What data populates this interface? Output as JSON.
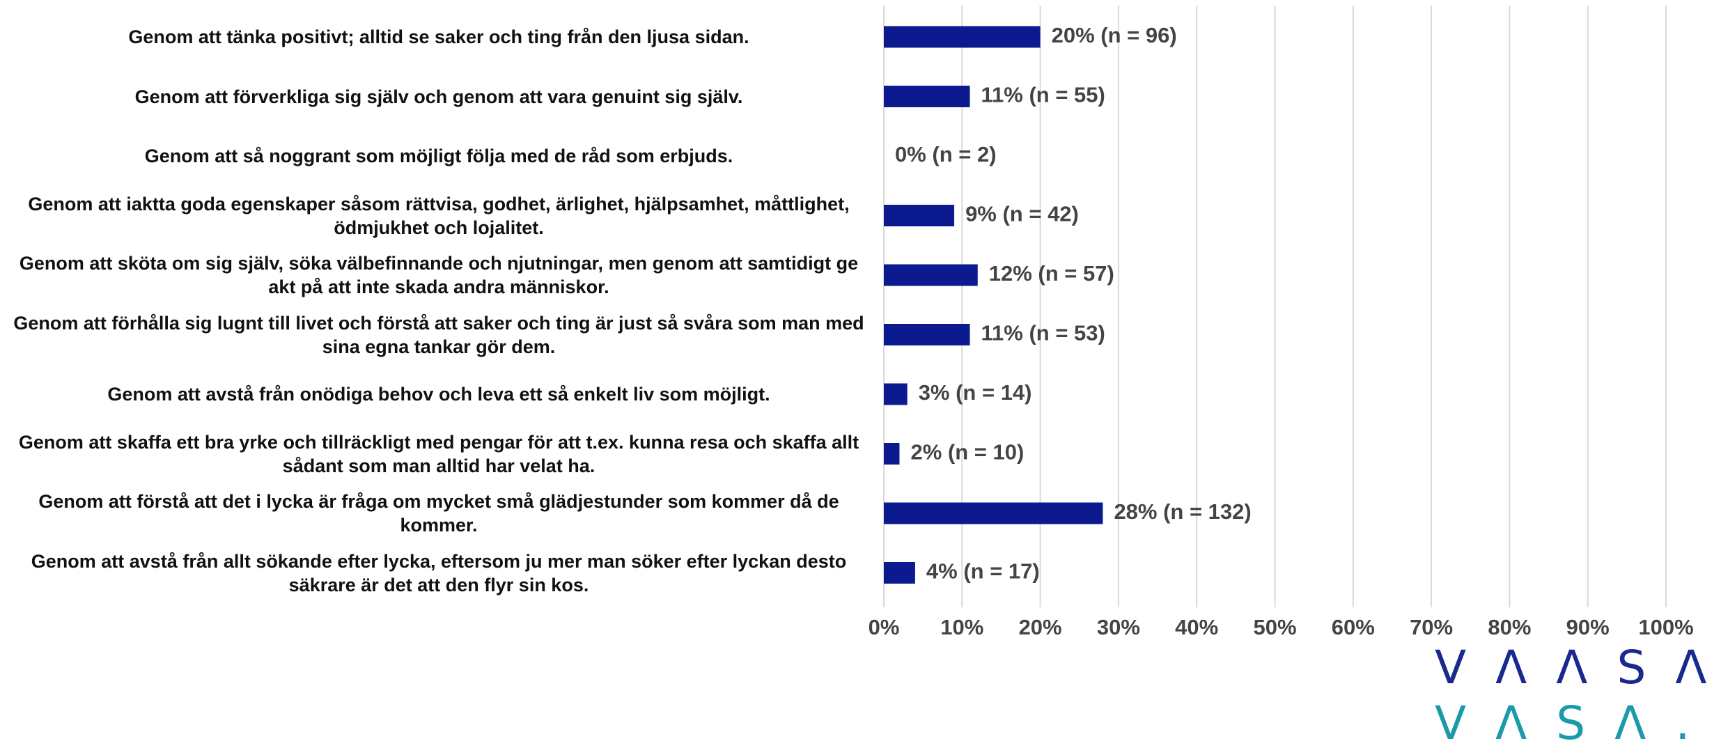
{
  "chart_data": {
    "type": "barh",
    "categories": [
      "Genom att tänka positivt; alltid se saker och ting från den ljusa sidan.",
      "Genom att förverkliga sig själv och genom att vara genuint sig själv.",
      "Genom att så noggrant som möjligt följa med de råd som erbjuds.",
      "Genom att iaktta goda egenskaper såsom rättvisa, godhet, ärlighet, hjälpsamhet, måttlighet, ödmjukhet och lojalitet.",
      "Genom att sköta om sig själv, söka välbefinnande och njutningar, men genom att samtidigt ge akt på att inte skada andra människor.",
      "Genom att förhålla sig lugnt till livet och förstå att saker och ting är just så svåra som man med sina egna tankar gör dem.",
      "Genom att avstå från onödiga behov och leva ett så enkelt liv som möjligt.",
      "Genom att skaffa ett bra yrke och tillräckligt med pengar för att t.ex.  kunna resa och skaffa allt sådant som man alltid har velat ha.",
      "Genom att förstå att det i lycka är fråga om mycket små glädjestunder som kommer då de kommer.",
      "Genom att avstå från allt sökande efter lycka, eftersom ju mer man söker efter lyckan desto säkrare är det att den flyr sin kos."
    ],
    "values": [
      20,
      11,
      0,
      9,
      12,
      11,
      3,
      2,
      28,
      4
    ],
    "value_labels": [
      "20% (n = 96)",
      "11% (n = 55)",
      "0% (n = 2)",
      "9% (n = 42)",
      "12% (n = 57)",
      "11% (n = 53)",
      "3% (n = 14)",
      "2% (n = 10)",
      "28% (n = 132)",
      "4% (n = 17)"
    ],
    "color": "#0b1a8f",
    "xlim": [
      0,
      100
    ],
    "xticks": [
      {
        "value": 0,
        "label": "0%"
      },
      {
        "value": 10,
        "label": "10%"
      },
      {
        "value": 20,
        "label": "20%"
      },
      {
        "value": 30,
        "label": "30%"
      },
      {
        "value": 40,
        "label": "40%"
      },
      {
        "value": 50,
        "label": "50%"
      },
      {
        "value": 60,
        "label": "60%"
      },
      {
        "value": 70,
        "label": "70%"
      },
      {
        "value": 80,
        "label": "80%"
      },
      {
        "value": 90,
        "label": "90%"
      },
      {
        "value": 100,
        "label": "100%"
      }
    ],
    "grid": true
  },
  "logo": {
    "line1": "VΛΛSΛ.",
    "line2": "VΛSΛ."
  }
}
